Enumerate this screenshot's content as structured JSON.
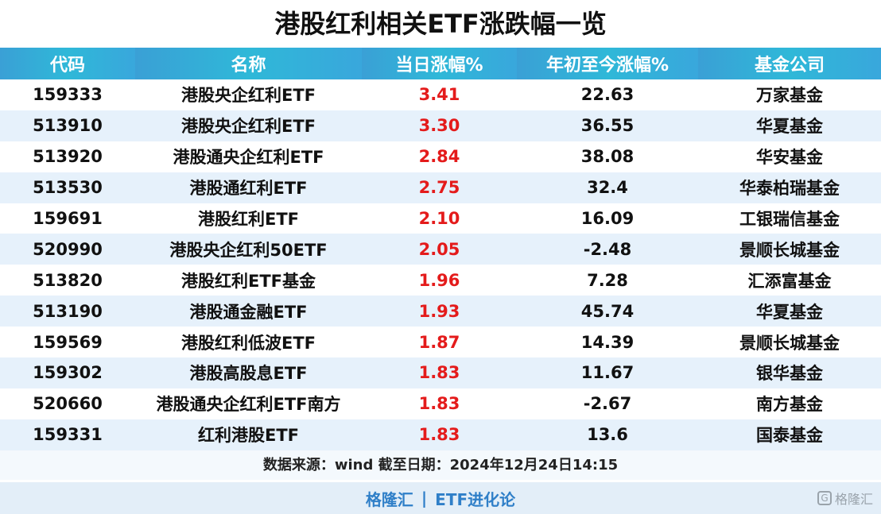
{
  "title": "港股红利相关ETF涨跌幅一览",
  "table": {
    "headers": [
      "代码",
      "名称",
      "当日涨幅%",
      "年初至今涨幅%",
      "基金公司"
    ],
    "rows": [
      {
        "code": "159333",
        "name": "港股央企红利ETF",
        "daily": "3.41",
        "ytd": "22.63",
        "company": "万家基金"
      },
      {
        "code": "513910",
        "name": "港股央企红利ETF",
        "daily": "3.30",
        "ytd": "36.55",
        "company": "华夏基金"
      },
      {
        "code": "513920",
        "name": "港股通央企红利ETF",
        "daily": "2.84",
        "ytd": "38.08",
        "company": "华安基金"
      },
      {
        "code": "513530",
        "name": "港股通红利ETF",
        "daily": "2.75",
        "ytd": "32.4",
        "company": "华泰柏瑞基金"
      },
      {
        "code": "159691",
        "name": "港股红利ETF",
        "daily": "2.10",
        "ytd": "16.09",
        "company": "工银瑞信基金"
      },
      {
        "code": "520990",
        "name": "港股央企红利50ETF",
        "daily": "2.05",
        "ytd": "-2.48",
        "company": "景顺长城基金"
      },
      {
        "code": "513820",
        "name": "港股红利ETF基金",
        "daily": "1.96",
        "ytd": "7.28",
        "company": "汇添富基金"
      },
      {
        "code": "513190",
        "name": "港股通金融ETF",
        "daily": "1.93",
        "ytd": "45.74",
        "company": "华夏基金"
      },
      {
        "code": "159569",
        "name": "港股红利低波ETF",
        "daily": "1.87",
        "ytd": "14.39",
        "company": "景顺长城基金"
      },
      {
        "code": "159302",
        "name": "港股高股息ETF",
        "daily": "1.83",
        "ytd": "11.67",
        "company": "银华基金"
      },
      {
        "code": "520660",
        "name": "港股通央企红利ETF南方",
        "daily": "1.83",
        "ytd": "-2.67",
        "company": "南方基金"
      },
      {
        "code": "159331",
        "name": "红利港股ETF",
        "daily": "1.83",
        "ytd": "13.6",
        "company": "国泰基金"
      }
    ]
  },
  "source_note": "数据来源：wind   截至日期：2024年12月24日14:15",
  "footer": {
    "left": "格隆汇",
    "separator": "|",
    "right": "ETF进化论"
  },
  "watermark": {
    "logo": "G",
    "text": "格隆汇"
  },
  "colors": {
    "header_bg": "#35aad8",
    "daily_up": "#e41b1b",
    "footer_text": "#2f7fc8"
  }
}
